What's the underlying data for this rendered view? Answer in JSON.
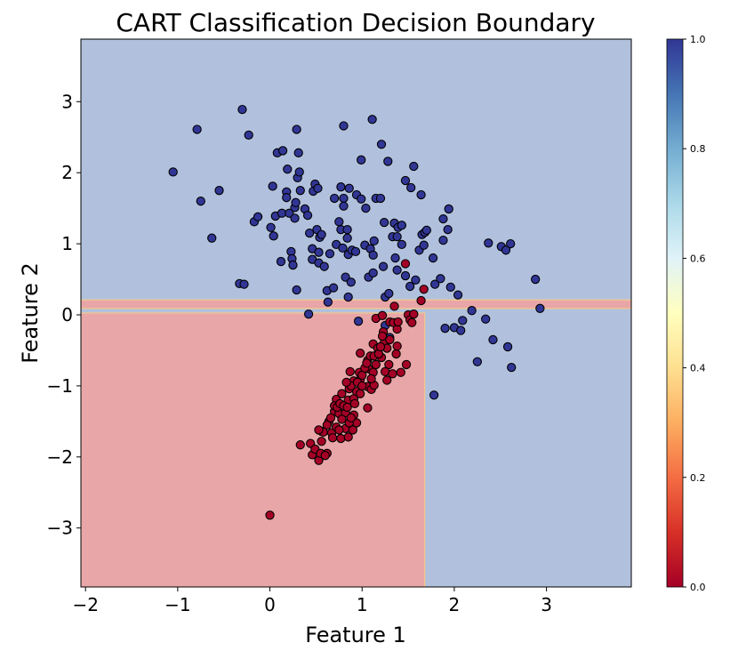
{
  "chart_data": {
    "type": "scatter",
    "title": "CART Classification Decision Boundary",
    "xlabel": "Feature 1",
    "ylabel": "Feature 2",
    "xlim": [
      -2.05,
      3.92
    ],
    "ylim": [
      -3.83,
      3.88
    ],
    "xticks": [
      -2,
      -1,
      0,
      1,
      2,
      3
    ],
    "yticks": [
      -3,
      -2,
      -1,
      0,
      1,
      2,
      3
    ],
    "xtick_labels": [
      "−2",
      "−1",
      "0",
      "1",
      "2",
      "3"
    ],
    "ytick_labels": [
      "−3",
      "−2",
      "−1",
      "0",
      "1",
      "2",
      "3"
    ],
    "grid": false,
    "colormap": "RdYlBu",
    "colors": {
      "class0": "#a50026",
      "class1": "#313695",
      "region0": "#e8a6a8",
      "region1": "#b1c1dd"
    },
    "decision_regions": [
      {
        "class": 1,
        "x": [
          -2.05,
          3.92
        ],
        "y": [
          -3.83,
          3.88
        ]
      },
      {
        "class": 0,
        "x": [
          -2.05,
          3.92
        ],
        "y": [
          0.09,
          0.21
        ]
      },
      {
        "class": 0,
        "x": [
          -2.05,
          1.68
        ],
        "y": [
          -3.83,
          0.025
        ]
      }
    ],
    "colorbar": {
      "range": [
        0.0,
        1.0
      ],
      "ticks": [
        "0.0",
        "0.2",
        "0.4",
        "0.6",
        "0.8",
        "1.0"
      ]
    },
    "series": [
      {
        "class": 1,
        "points": [
          [
            -1.05,
            2.01
          ],
          [
            -0.79,
            2.61
          ],
          [
            -0.75,
            1.6
          ],
          [
            -0.55,
            1.75
          ],
          [
            -0.63,
            1.08
          ],
          [
            -0.3,
            2.89
          ],
          [
            -0.23,
            2.53
          ],
          [
            -0.33,
            0.44
          ],
          [
            -0.28,
            0.43
          ],
          [
            -0.17,
            1.31
          ],
          [
            -0.13,
            1.38
          ],
          [
            0.03,
            1.81
          ],
          [
            0.01,
            1.23
          ],
          [
            0.04,
            1.11
          ],
          [
            0.06,
            1.39
          ],
          [
            0.08,
            2.28
          ],
          [
            0.14,
            2.31
          ],
          [
            0.12,
            0.75
          ],
          [
            0.13,
            1.43
          ],
          [
            0.18,
            1.73
          ],
          [
            0.19,
            2.05
          ],
          [
            0.18,
            1.65
          ],
          [
            0.21,
            1.43
          ],
          [
            0.23,
            0.89
          ],
          [
            0.24,
            0.79
          ],
          [
            0.25,
            0.7
          ],
          [
            0.27,
            1.36
          ],
          [
            0.27,
            1.51
          ],
          [
            0.28,
            1.58
          ],
          [
            0.29,
            2.61
          ],
          [
            0.31,
            2.28
          ],
          [
            0.3,
            1.93
          ],
          [
            0.32,
            2.01
          ],
          [
            0.29,
            0.35
          ],
          [
            0.33,
            1.75
          ],
          [
            0.38,
            1.49
          ],
          [
            0.41,
            1.4
          ],
          [
            0.43,
            1.15
          ],
          [
            0.42,
            0.01
          ],
          [
            0.47,
            1.74
          ],
          [
            0.49,
            1.84
          ],
          [
            0.46,
            0.93
          ],
          [
            0.46,
            0.78
          ],
          [
            0.52,
            1.78
          ],
          [
            0.51,
            1.2
          ],
          [
            0.53,
            0.73
          ],
          [
            0.54,
            1.09
          ],
          [
            0.53,
            0.88
          ],
          [
            0.56,
            1.13
          ],
          [
            0.59,
            0.68
          ],
          [
            0.62,
            0.34
          ],
          [
            0.63,
            0.18
          ],
          [
            0.65,
            0.86
          ],
          [
            0.69,
            0.38
          ],
          [
            0.7,
            1.64
          ],
          [
            0.72,
            0.99
          ],
          [
            0.75,
            1.31
          ],
          [
            0.77,
            1.2
          ],
          [
            0.77,
            1.8
          ],
          [
            0.8,
            2.66
          ],
          [
            0.8,
            1.64
          ],
          [
            0.8,
            1.53
          ],
          [
            0.79,
            0.94
          ],
          [
            0.82,
            0.53
          ],
          [
            0.84,
            1.2
          ],
          [
            0.84,
            1.08
          ],
          [
            0.85,
            0.85
          ],
          [
            0.85,
            0.25
          ],
          [
            0.86,
            1.78
          ],
          [
            0.88,
            0.46
          ],
          [
            0.89,
            0.91
          ],
          [
            0.93,
            0.89
          ],
          [
            0.96,
            -0.09
          ],
          [
            0.94,
            1.69
          ],
          [
            0.99,
            2.18
          ],
          [
            0.99,
            1.63
          ],
          [
            1.04,
            1.5
          ],
          [
            1.03,
            0.98
          ],
          [
            1.07,
            0.53
          ],
          [
            1.09,
            0.93
          ],
          [
            1.12,
            0.84
          ],
          [
            1.11,
            2.75
          ],
          [
            1.12,
            0.59
          ],
          [
            1.13,
            1.04
          ],
          [
            1.15,
            1.64
          ],
          [
            1.2,
            1.64
          ],
          [
            1.21,
            2.4
          ],
          [
            1.24,
            1.3
          ],
          [
            1.23,
            0.68
          ],
          [
            1.25,
            0.25
          ],
          [
            1.28,
            2.16
          ],
          [
            1.29,
            0.3
          ],
          [
            1.33,
            1.1
          ],
          [
            1.35,
            1.29
          ],
          [
            1.36,
            0.8
          ],
          [
            1.38,
            0.63
          ],
          [
            1.39,
            1.23
          ],
          [
            1.38,
            1.1
          ],
          [
            1.43,
            1.26
          ],
          [
            1.43,
            0.99
          ],
          [
            1.47,
            0.55
          ],
          [
            1.47,
            1.89
          ],
          [
            1.52,
            0.4
          ],
          [
            1.53,
            1.79
          ],
          [
            1.56,
            2.09
          ],
          [
            1.58,
            0.49
          ],
          [
            1.62,
            0.91
          ],
          [
            1.64,
            1.69
          ],
          [
            1.65,
            1.13
          ],
          [
            1.67,
            0.98
          ],
          [
            1.68,
            1.16
          ],
          [
            1.7,
            1.19
          ],
          [
            1.77,
            0.8
          ],
          [
            1.79,
            0.43
          ],
          [
            1.85,
            0.51
          ],
          [
            1.88,
            1.05
          ],
          [
            1.88,
            1.35
          ],
          [
            1.9,
            -0.19
          ],
          [
            1.93,
            1.2
          ],
          [
            1.94,
            1.49
          ],
          [
            1.96,
            0.39
          ],
          [
            2.0,
            -0.18
          ],
          [
            2.04,
            0.28
          ],
          [
            2.07,
            -0.22
          ],
          [
            2.09,
            -0.08
          ],
          [
            1.78,
            -1.13
          ],
          [
            2.19,
            0.06
          ],
          [
            2.25,
            -0.66
          ],
          [
            2.34,
            -0.06
          ],
          [
            2.37,
            1.01
          ],
          [
            2.42,
            -0.35
          ],
          [
            2.51,
            0.96
          ],
          [
            2.56,
            0.91
          ],
          [
            2.61,
            1.0
          ],
          [
            2.58,
            -0.45
          ],
          [
            2.62,
            -0.74
          ],
          [
            2.88,
            0.5
          ],
          [
            2.93,
            0.09
          ],
          [
            1.3,
            -0.32
          ],
          [
            1.25,
            -0.15
          ]
        ]
      },
      {
        "class": 0,
        "points": [
          [
            0.33,
            -1.83
          ],
          [
            0.44,
            -1.81
          ],
          [
            0.46,
            -1.97
          ],
          [
            0.53,
            -2.05
          ],
          [
            0.56,
            -1.78
          ],
          [
            0.62,
            -1.95
          ],
          [
            0.49,
            -1.89
          ],
          [
            0.56,
            -1.64
          ],
          [
            0.64,
            -1.5
          ],
          [
            0.67,
            -1.66
          ],
          [
            0.72,
            -1.58
          ],
          [
            0.77,
            -1.74
          ],
          [
            0.82,
            -1.6
          ],
          [
            0.85,
            -1.72
          ],
          [
            0.9,
            -1.62
          ],
          [
            0.94,
            -1.52
          ],
          [
            0.72,
            -1.19
          ],
          [
            0.7,
            -1.36
          ],
          [
            0.75,
            -1.39
          ],
          [
            0.82,
            -1.38
          ],
          [
            0.91,
            -1.41
          ],
          [
            0.78,
            -1.11
          ],
          [
            0.85,
            -1.2
          ],
          [
            0.91,
            -1.18
          ],
          [
            0.94,
            -1.08
          ],
          [
            0.98,
            -1.11
          ],
          [
            1.06,
            -1.31
          ],
          [
            0.86,
            -1.04
          ],
          [
            0.91,
            -0.93
          ],
          [
            0.98,
            -0.91
          ],
          [
            1.06,
            -1.01
          ],
          [
            1.1,
            -1.05
          ],
          [
            1.13,
            -0.99
          ],
          [
            0.87,
            -0.8
          ],
          [
            0.97,
            -0.81
          ],
          [
            1.07,
            -0.76
          ],
          [
            1.12,
            -0.81
          ],
          [
            0.98,
            -0.54
          ],
          [
            1.06,
            -0.64
          ],
          [
            1.09,
            -0.58
          ],
          [
            1.13,
            -0.58
          ],
          [
            1.21,
            -0.6
          ],
          [
            1.12,
            -0.41
          ],
          [
            1.17,
            -0.47
          ],
          [
            1.24,
            -0.39
          ],
          [
            1.27,
            -0.47
          ],
          [
            1.37,
            -0.55
          ],
          [
            1.38,
            -0.44
          ],
          [
            1.29,
            -0.7
          ],
          [
            1.25,
            -0.8
          ],
          [
            1.33,
            -0.83
          ],
          [
            1.27,
            -0.92
          ],
          [
            1.42,
            -0.81
          ],
          [
            1.48,
            -0.7
          ],
          [
            1.23,
            -0.24
          ],
          [
            1.22,
            -0.3
          ],
          [
            1.15,
            -0.05
          ],
          [
            1.22,
            -0.01
          ],
          [
            1.3,
            -0.1
          ],
          [
            1.34,
            -0.11
          ],
          [
            1.38,
            -0.2
          ],
          [
            1.39,
            -0.1
          ],
          [
            1.5,
            0.0
          ],
          [
            1.52,
            -0.07
          ],
          [
            1.56,
            0.01
          ],
          [
            1.54,
            -0.11
          ],
          [
            1.35,
            0.12
          ],
          [
            1.64,
            0.2
          ],
          [
            1.67,
            0.36
          ],
          [
            1.47,
            0.72
          ],
          [
            0.62,
            -1.55
          ],
          [
            0.66,
            -1.45
          ],
          [
            0.7,
            -1.28
          ],
          [
            0.73,
            -1.3
          ],
          [
            0.76,
            -1.25
          ],
          [
            0.8,
            -1.28
          ],
          [
            0.84,
            -1.3
          ],
          [
            0.88,
            -1.0
          ],
          [
            0.83,
            -0.95
          ],
          [
            0.95,
            -0.95
          ],
          [
            1.0,
            -0.85
          ],
          [
            1.03,
            -0.75
          ],
          [
            1.05,
            -0.68
          ],
          [
            1.15,
            -0.7
          ],
          [
            1.18,
            -0.55
          ],
          [
            0.78,
            -1.47
          ],
          [
            0.86,
            -1.52
          ],
          [
            0.68,
            -1.73
          ],
          [
            0.58,
            -1.65
          ],
          [
            0.53,
            -1.62
          ],
          [
            0.55,
            -1.95
          ],
          [
            0.6,
            -1.98
          ],
          [
            0.0,
            -2.82
          ],
          [
            1.3,
            -0.35
          ],
          [
            1.2,
            -0.45
          ],
          [
            0.92,
            -1.25
          ],
          [
            0.88,
            -1.45
          ],
          [
            0.75,
            -1.62
          ],
          [
            1.0,
            -1.0
          ],
          [
            1.1,
            -0.9
          ]
        ]
      }
    ]
  }
}
